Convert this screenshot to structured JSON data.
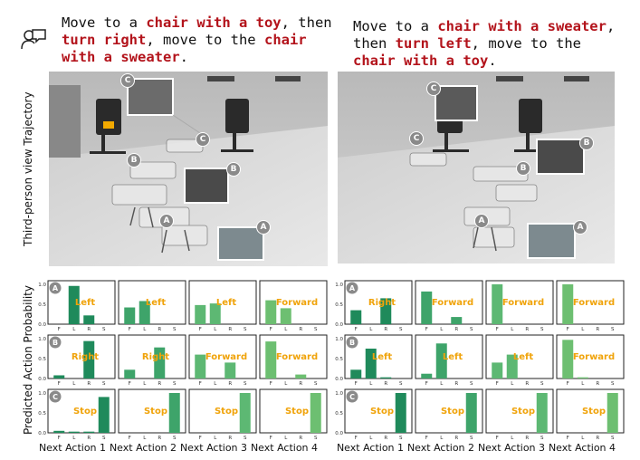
{
  "left": {
    "instruction": [
      {
        "text": "Move to a ",
        "hl": false
      },
      {
        "text": "chair with a toy",
        "hl": true
      },
      {
        "text": ", then\n",
        "hl": false
      },
      {
        "text": "turn right",
        "hl": true
      },
      {
        "text": ", move to the ",
        "hl": false
      },
      {
        "text": "chair\nwith a sweater",
        "hl": true
      },
      {
        "text": ".",
        "hl": false
      }
    ],
    "waypoints": [
      "C",
      "C",
      "B",
      "B",
      "A",
      "A"
    ]
  },
  "right": {
    "instruction": [
      {
        "text": "Move to a ",
        "hl": false
      },
      {
        "text": "chair with a sweater",
        "hl": true
      },
      {
        "text": ",\nthen ",
        "hl": false
      },
      {
        "text": "turn left",
        "hl": true
      },
      {
        "text": ", move to the\n",
        "hl": false
      },
      {
        "text": "chair with a toy",
        "hl": true
      },
      {
        "text": ".",
        "hl": false
      }
    ],
    "waypoints": [
      "C",
      "C",
      "B",
      "B",
      "A",
      "A"
    ]
  },
  "labels": {
    "trajectory": "Third-person view Trajectory",
    "probability": "Predicted Action Probability"
  },
  "chart_data": {
    "type": "bar",
    "categories": [
      "F",
      "L",
      "R",
      "S"
    ],
    "ylim": [
      0,
      1.0
    ],
    "yticks": [
      "0.0",
      "0.5",
      "1.0"
    ],
    "columns": [
      "Next Action 1",
      "Next Action 2",
      "Next Action 3",
      "Next Action 4"
    ],
    "panels": [
      {
        "side": "left",
        "row": "A",
        "charts": [
          {
            "values": [
              0,
              0.96,
              0.22,
              0
            ],
            "label": "Left"
          },
          {
            "values": [
              0.42,
              0.58,
              0,
              0
            ],
            "label": "Left"
          },
          {
            "values": [
              0.48,
              0.52,
              0,
              0
            ],
            "label": "Left"
          },
          {
            "values": [
              0.6,
              0.4,
              0,
              0
            ],
            "label": "Forward"
          }
        ]
      },
      {
        "side": "left",
        "row": "B",
        "charts": [
          {
            "values": [
              0.08,
              0,
              0.94,
              0
            ],
            "label": "Right"
          },
          {
            "values": [
              0.22,
              0,
              0.78,
              0
            ],
            "label": "Right"
          },
          {
            "values": [
              0.6,
              0,
              0.4,
              0
            ],
            "label": "Forward"
          },
          {
            "values": [
              0.93,
              0,
              0.1,
              0
            ],
            "label": "Forward"
          }
        ]
      },
      {
        "side": "left",
        "row": "C",
        "charts": [
          {
            "values": [
              0.05,
              0.03,
              0.03,
              0.9
            ],
            "label": "Stop"
          },
          {
            "values": [
              0,
              0,
              0,
              1.0
            ],
            "label": "Stop"
          },
          {
            "values": [
              0,
              0,
              0,
              1.0
            ],
            "label": "Stop"
          },
          {
            "values": [
              0,
              0,
              0,
              1.0
            ],
            "label": "Stop"
          }
        ]
      },
      {
        "side": "right",
        "row": "A",
        "charts": [
          {
            "values": [
              0.35,
              0,
              0.65,
              0
            ],
            "label": "Right"
          },
          {
            "values": [
              0.82,
              0,
              0.18,
              0
            ],
            "label": "Forward"
          },
          {
            "values": [
              1.0,
              0,
              0,
              0
            ],
            "label": "Forward"
          },
          {
            "values": [
              1.0,
              0,
              0,
              0
            ],
            "label": "Forward"
          }
        ]
      },
      {
        "side": "right",
        "row": "B",
        "charts": [
          {
            "values": [
              0.22,
              0.75,
              0.03,
              0
            ],
            "label": "Left"
          },
          {
            "values": [
              0.12,
              0.88,
              0,
              0
            ],
            "label": "Left"
          },
          {
            "values": [
              0.4,
              0.6,
              0,
              0
            ],
            "label": "Left"
          },
          {
            "values": [
              0.97,
              0.03,
              0,
              0
            ],
            "label": "Forward"
          }
        ]
      },
      {
        "side": "right",
        "row": "C",
        "charts": [
          {
            "values": [
              0,
              0,
              0,
              1.0
            ],
            "label": "Stop"
          },
          {
            "values": [
              0,
              0,
              0,
              1.0
            ],
            "label": "Stop"
          },
          {
            "values": [
              0,
              0,
              0,
              1.0
            ],
            "label": "Stop"
          },
          {
            "values": [
              0,
              0,
              0,
              1.0
            ],
            "label": "Stop"
          }
        ]
      }
    ],
    "colors": {
      "bar": [
        "#1f8a5b",
        "#3ea46a",
        "#5db873",
        "#6dbf71"
      ],
      "label": "#f0a30a"
    }
  }
}
